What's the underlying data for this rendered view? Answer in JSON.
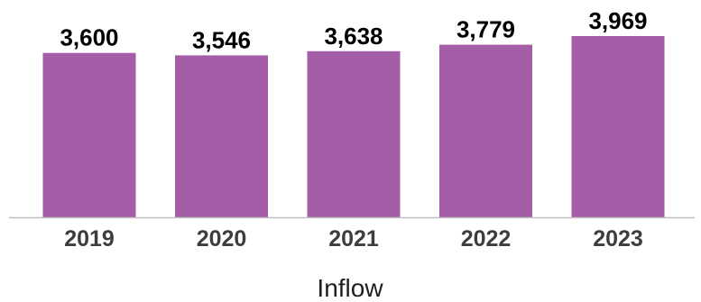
{
  "chart_data": {
    "type": "bar",
    "categories": [
      "2019",
      "2020",
      "2021",
      "2022",
      "2023"
    ],
    "values": [
      3600,
      3546,
      3638,
      3779,
      3969
    ],
    "value_labels": [
      "3,600",
      "3,546",
      "3,638",
      "3,779",
      "3,969"
    ],
    "title": "",
    "xlabel": "Inflow",
    "ylabel": "",
    "ylim": [
      0,
      3969
    ],
    "grid": false,
    "legend": "none",
    "bar_color": "#a45ea8",
    "axis_color": "#bfbfbf"
  }
}
